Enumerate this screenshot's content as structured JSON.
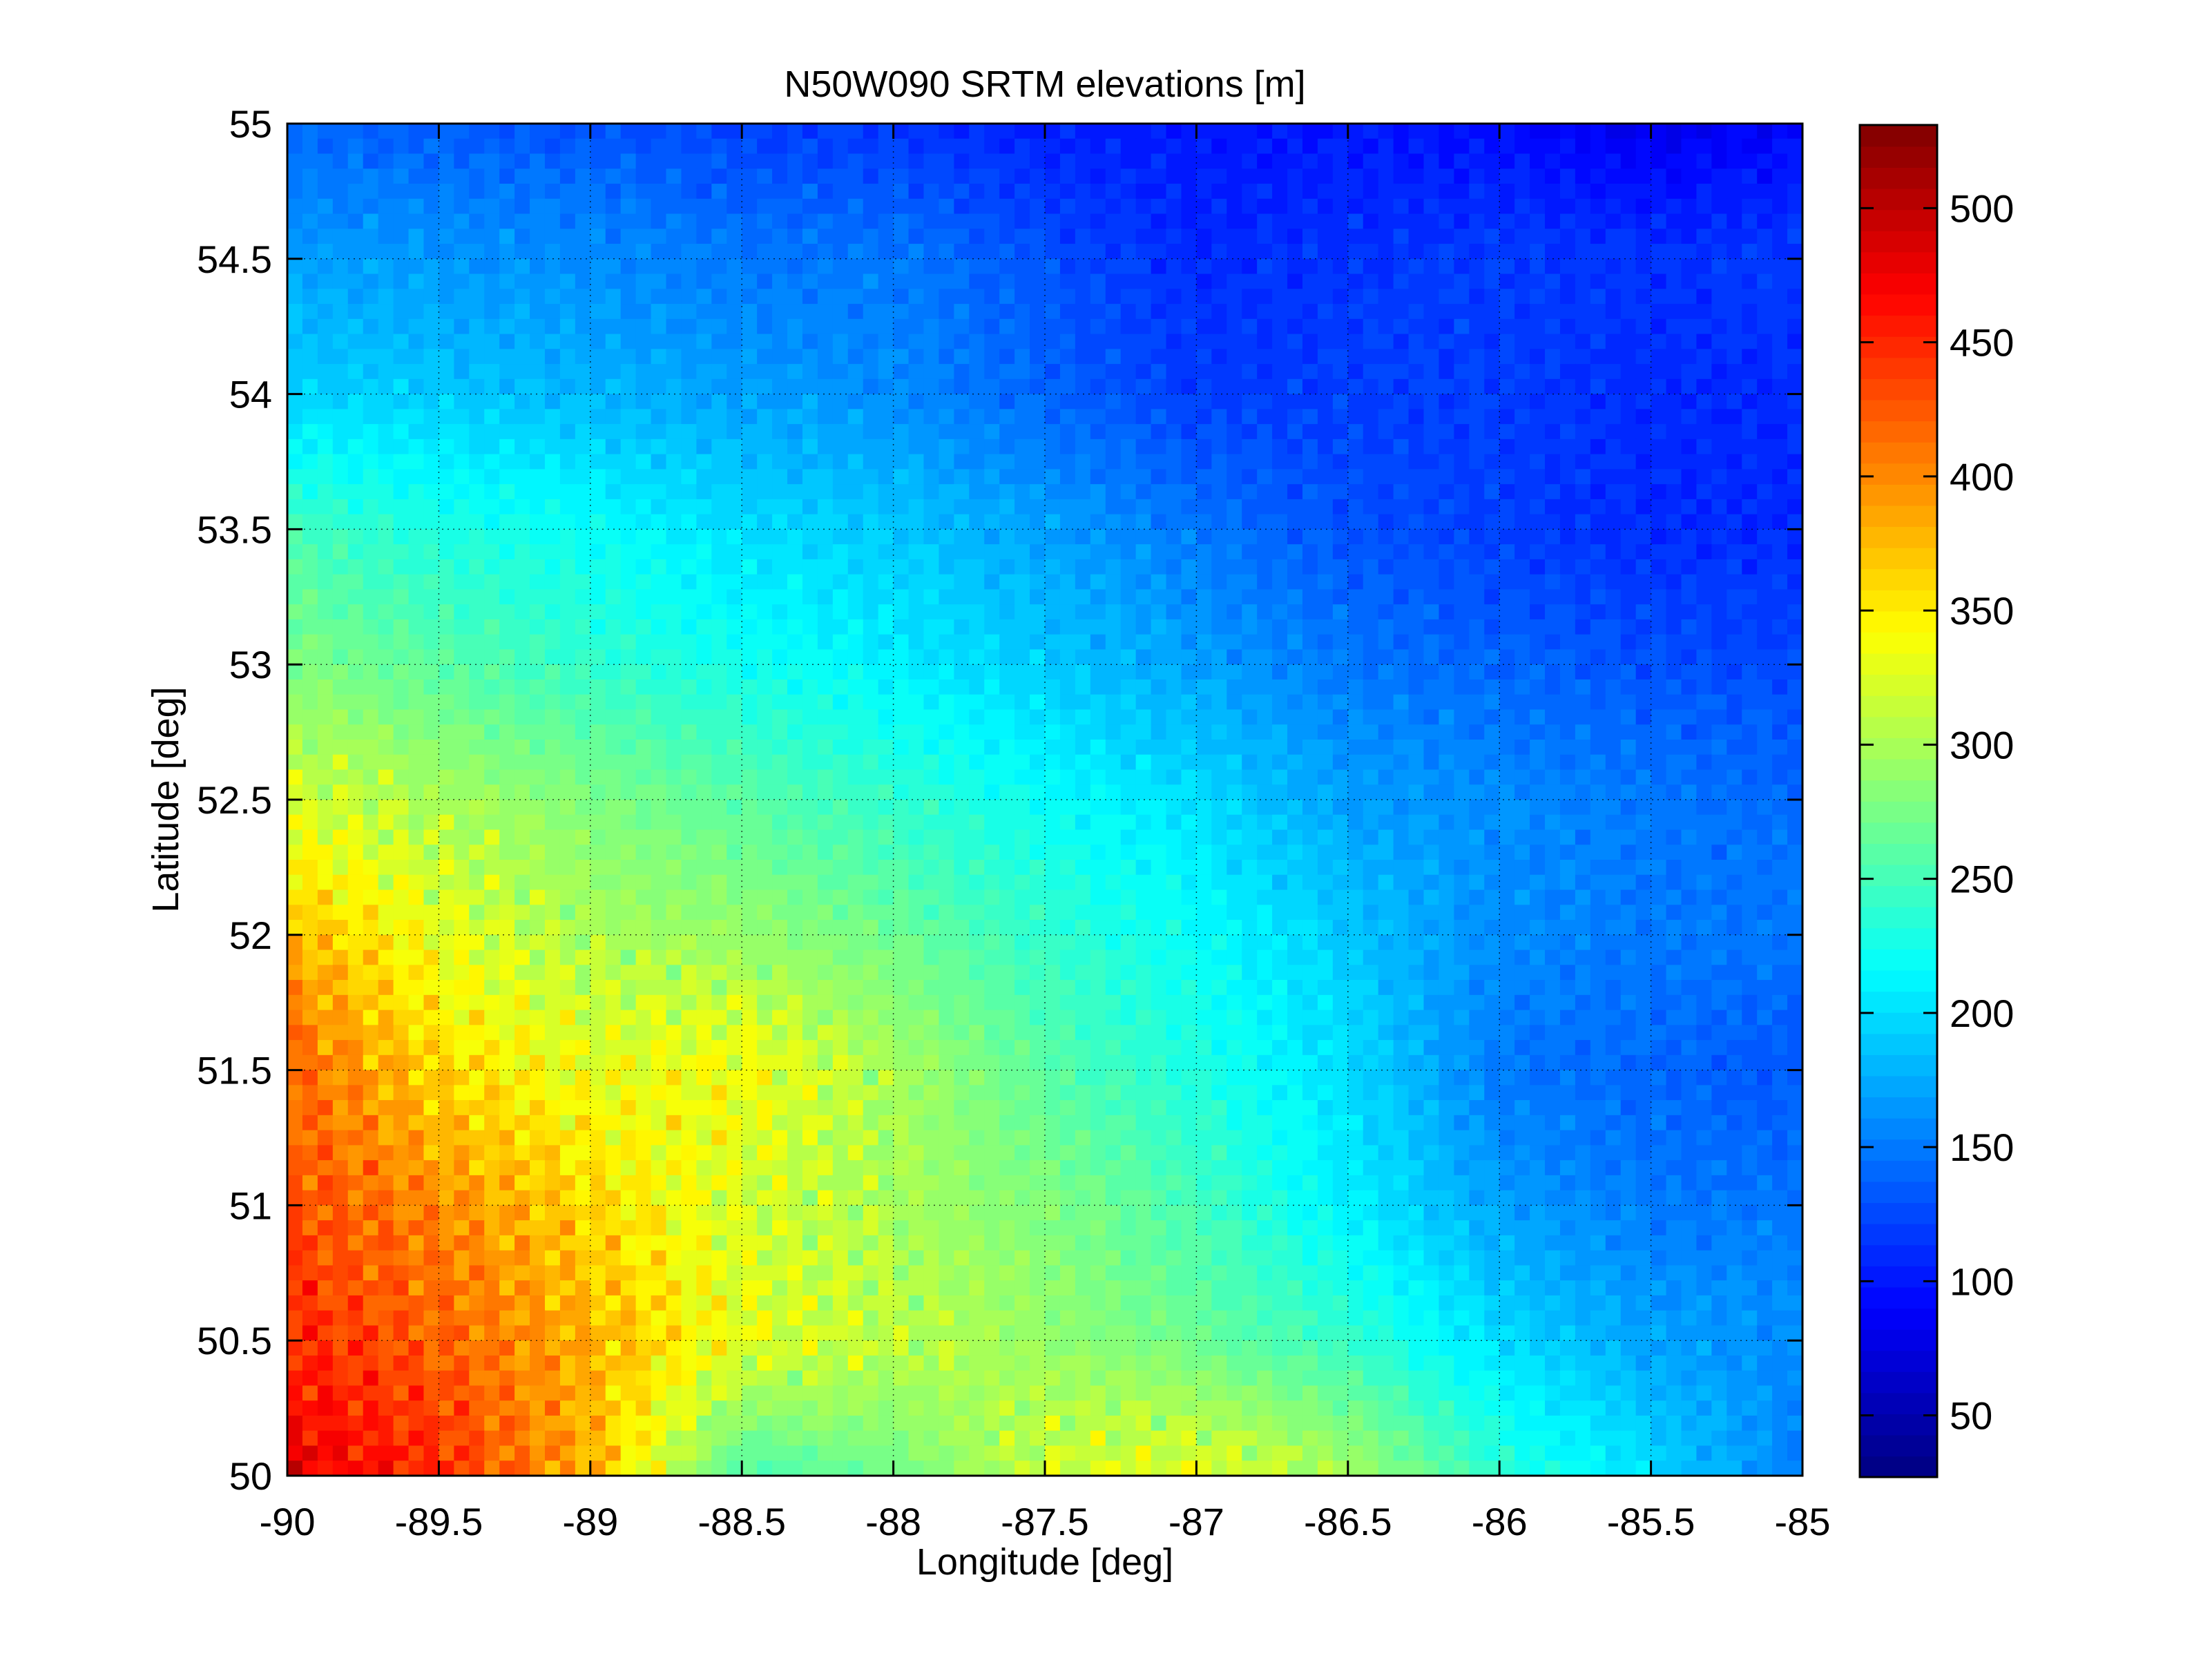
{
  "chart_data": {
    "type": "heatmap",
    "title": "N50W090 SRTM elevations [m]",
    "xlabel": "Longitude [deg]",
    "ylabel": "Latitude [deg]",
    "xlim": [
      -90,
      -85
    ],
    "ylim": [
      50,
      55
    ],
    "xticks": [
      -90,
      -89.5,
      -89,
      -88.5,
      -88,
      -87.5,
      -87,
      -86.5,
      -86,
      -85.5,
      -85
    ],
    "xtick_labels": [
      "-90",
      "-89.5",
      "-89",
      "-88.5",
      "-88",
      "-87.5",
      "-87",
      "-86.5",
      "-86",
      "-85.5",
      "-85"
    ],
    "yticks": [
      50,
      50.5,
      51,
      51.5,
      52,
      52.5,
      53,
      53.5,
      54,
      54.5,
      55
    ],
    "ytick_labels": [
      "50",
      "50.5",
      "51",
      "51.5",
      "52",
      "52.5",
      "53",
      "53.5",
      "54",
      "54.5",
      "55"
    ],
    "grid": true,
    "colormap": "jet",
    "colormap_levels": 64,
    "colorbar": {
      "range": [
        27,
        531
      ],
      "ticks": [
        50,
        100,
        150,
        200,
        250,
        300,
        350,
        400,
        450,
        500
      ],
      "tick_labels": [
        "50",
        "100",
        "150",
        "200",
        "250",
        "300",
        "350",
        "400",
        "450",
        "500"
      ],
      "placement": "right"
    },
    "grid_lon": [
      -90,
      -89.5,
      -89,
      -88.5,
      -88,
      -87.5,
      -87,
      -86.5,
      -86,
      -85.5,
      -85
    ],
    "grid_lat": [
      55,
      54.5,
      54,
      53.5,
      53,
      52.5,
      52,
      51.5,
      51,
      50.5,
      50
    ],
    "elevation_m": [
      [
        140,
        135,
        130,
        120,
        115,
        105,
        100,
        100,
        95,
        80,
        90
      ],
      [
        170,
        165,
        160,
        150,
        150,
        130,
        110,
        115,
        120,
        115,
        120
      ],
      [
        195,
        190,
        180,
        170,
        160,
        140,
        120,
        120,
        120,
        110,
        110
      ],
      [
        250,
        230,
        220,
        200,
        190,
        170,
        150,
        130,
        120,
        110,
        110
      ],
      [
        280,
        260,
        240,
        225,
        210,
        190,
        170,
        150,
        140,
        130,
        125
      ],
      [
        320,
        300,
        280,
        260,
        240,
        220,
        200,
        170,
        160,
        150,
        140
      ],
      [
        380,
        330,
        300,
        290,
        270,
        240,
        220,
        190,
        160,
        150,
        150
      ],
      [
        420,
        360,
        330,
        340,
        300,
        260,
        230,
        200,
        150,
        140,
        130
      ],
      [
        430,
        400,
        360,
        320,
        300,
        280,
        250,
        210,
        170,
        150,
        150
      ],
      [
        450,
        420,
        380,
        330,
        310,
        290,
        270,
        240,
        200,
        170,
        160
      ],
      [
        480,
        450,
        380,
        250,
        270,
        320,
        330,
        300,
        240,
        200,
        150
      ]
    ]
  }
}
